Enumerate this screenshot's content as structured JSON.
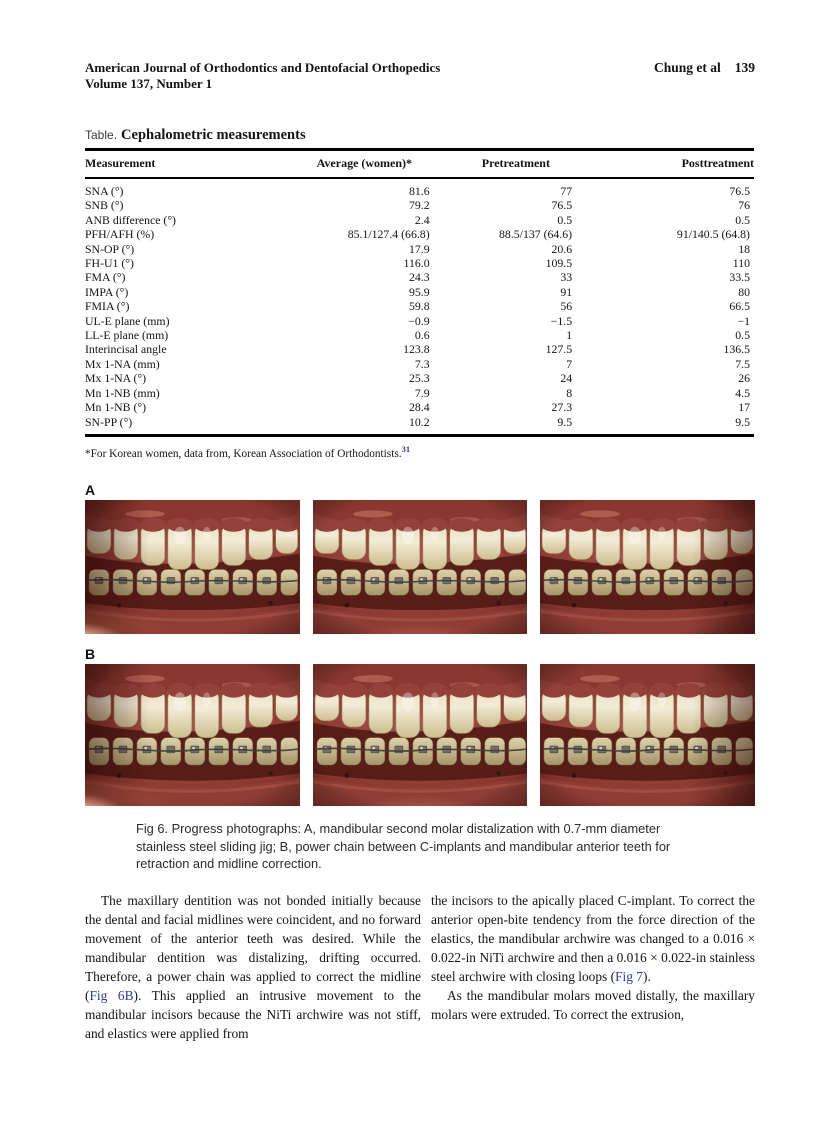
{
  "header": {
    "journal": "American Journal of Orthodontics and Dentofacial Orthopedics",
    "volume": "Volume 137, Number 1",
    "authors": "Chung et al",
    "page": "139"
  },
  "table": {
    "label": "Table.",
    "title": "Cephalometric measurements",
    "columns": [
      "Measurement",
      "Average (women)*",
      "Pretreatment",
      "Posttreatment"
    ],
    "rows": [
      [
        "SNA (°)",
        "81.6",
        "77",
        "76.5"
      ],
      [
        "SNB (°)",
        "79.2",
        "76.5",
        "76"
      ],
      [
        "ANB difference (°)",
        "2.4",
        "0.5",
        "0.5"
      ],
      [
        "PFH/AFH (%)",
        "85.1/127.4 (66.8)",
        "88.5/137 (64.6)",
        "91/140.5 (64.8)"
      ],
      [
        "SN-OP (°)",
        "17.9",
        "20.6",
        "18"
      ],
      [
        "FH-U1 (°)",
        "116.0",
        "109.5",
        "110"
      ],
      [
        "FMA (°)",
        "24.3",
        "33",
        "33.5"
      ],
      [
        "IMPA (°)",
        "95.9",
        "91",
        "80"
      ],
      [
        "FMIA (°)",
        "59.8",
        "56",
        "66.5"
      ],
      [
        "UL-E plane (mm)",
        "−0.9",
        "−1.5",
        "−1"
      ],
      [
        "LL-E plane (mm)",
        "0.6",
        "1",
        "0.5"
      ],
      [
        "Interincisal angle",
        "123.8",
        "127.5",
        "136.5"
      ],
      [
        "Mx 1-NA (mm)",
        "7.3",
        "7",
        "7.5"
      ],
      [
        "Mx 1-NA (°)",
        "25.3",
        "24",
        "26"
      ],
      [
        "Mn 1-NB (mm)",
        "7.9",
        "8",
        "4.5"
      ],
      [
        "Mn 1-NB (°)",
        "28.4",
        "27.3",
        "17"
      ],
      [
        "SN-PP (°)",
        "10.2",
        "9.5",
        "9.5"
      ]
    ],
    "footnote": "*For Korean women, data from, Korean Association of Orthodontists.",
    "footnote_ref": "31"
  },
  "figure": {
    "panel_a_label": "A",
    "panel_b_label": "B",
    "caption_label": "Fig 6.",
    "caption_text": " Progress photographs: A, mandibular second molar distalization with 0.7-mm diameter stainless steel sliding jig; B, power chain between C-implants and mandibular anterior teeth for retraction and midline correction."
  },
  "body": {
    "left": {
      "p1a": "The maxillary dentition was not bonded initially because the dental and facial midlines were coincident, and no forward movement of the anterior teeth was desired. While the mandibular dentition was distalizing, drifting occurred. Therefore, a power chain was applied to correct the midline (",
      "link": "Fig 6B",
      "p1b": "). This applied an intrusive movement to the mandibular incisors because the NiTi archwire was not stiff, and elastics were applied from"
    },
    "right": {
      "p1a": "the incisors to the apically placed C-implant. To correct the anterior open-bite tendency from the force direction of the elastics, the mandibular archwire was changed to a 0.016 × 0.022-in NiTi archwire and then a 0.016 × 0.022-in stainless steel archwire with closing loops (",
      "link": "Fig 7",
      "p1b": ").",
      "p2": "As the mandibular molars moved distally, the maxillary molars were extruded. To correct the extrusion,"
    }
  },
  "colors": {
    "link_blue": "#2a3b96",
    "gum_red": "#8d3a32",
    "tooth_cream": "#eee5c9"
  }
}
